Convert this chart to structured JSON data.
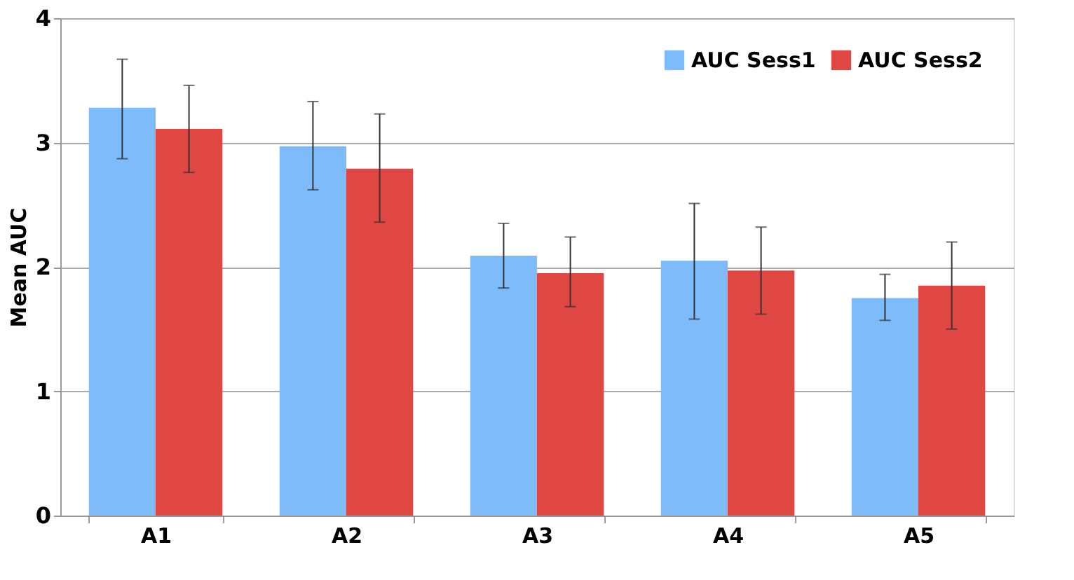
{
  "chart_data": {
    "type": "bar",
    "ylabel": "Mean AUC",
    "categories": [
      "A1",
      "A2",
      "A3",
      "A4",
      "A5"
    ],
    "series": [
      {
        "name": "AUC Sess1",
        "color": "#7dbbfa",
        "values": [
          3.28,
          2.97,
          2.09,
          2.05,
          1.75
        ],
        "errors": [
          [
            2.87,
            3.67
          ],
          [
            2.62,
            3.33
          ],
          [
            1.83,
            2.35
          ],
          [
            1.58,
            2.51
          ],
          [
            1.57,
            1.94
          ]
        ]
      },
      {
        "name": "AUC Sess2",
        "color": "#e04642",
        "values": [
          3.11,
          2.79,
          1.95,
          1.97,
          1.85
        ],
        "errors": [
          [
            2.76,
            3.46
          ],
          [
            2.36,
            3.23
          ],
          [
            1.68,
            2.24
          ],
          [
            1.62,
            2.32
          ],
          [
            1.5,
            2.2
          ]
        ]
      }
    ],
    "ylim": [
      0,
      4
    ],
    "yticks": [
      0,
      1,
      2,
      3,
      4
    ],
    "grid": "y",
    "legend": "top right"
  }
}
